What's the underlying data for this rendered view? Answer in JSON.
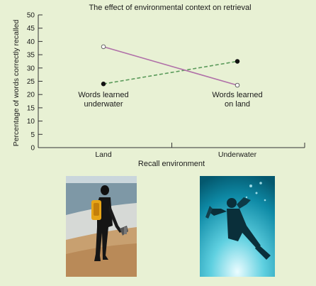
{
  "chart_data": {
    "type": "line",
    "title": "The effect of environmental context on retrieval",
    "xlabel": "Recall environment",
    "ylabel": "Percentage of words correctly recalled",
    "categories": [
      "Land",
      "Underwater"
    ],
    "ylim": [
      0,
      50
    ],
    "yticks": [
      0,
      5,
      10,
      15,
      20,
      25,
      30,
      35,
      40,
      45,
      50
    ],
    "grid": false,
    "series": [
      {
        "name": "Words learned underwater",
        "label_lines": [
          "Words learned",
          "underwater"
        ],
        "values": [
          24,
          32.5
        ],
        "color": "#5a9a5a",
        "style": "dashed",
        "marker": "filled"
      },
      {
        "name": "Words learned on land",
        "label_lines": [
          "Words learned",
          "on land"
        ],
        "values": [
          38,
          23.5
        ],
        "color": "#b070a8",
        "style": "solid",
        "marker": "open"
      }
    ]
  },
  "photos": [
    {
      "subject": "diver-on-beach"
    },
    {
      "subject": "diver-underwater"
    }
  ],
  "colors": {
    "background": "#e8f1d4",
    "axis": "#333333"
  }
}
